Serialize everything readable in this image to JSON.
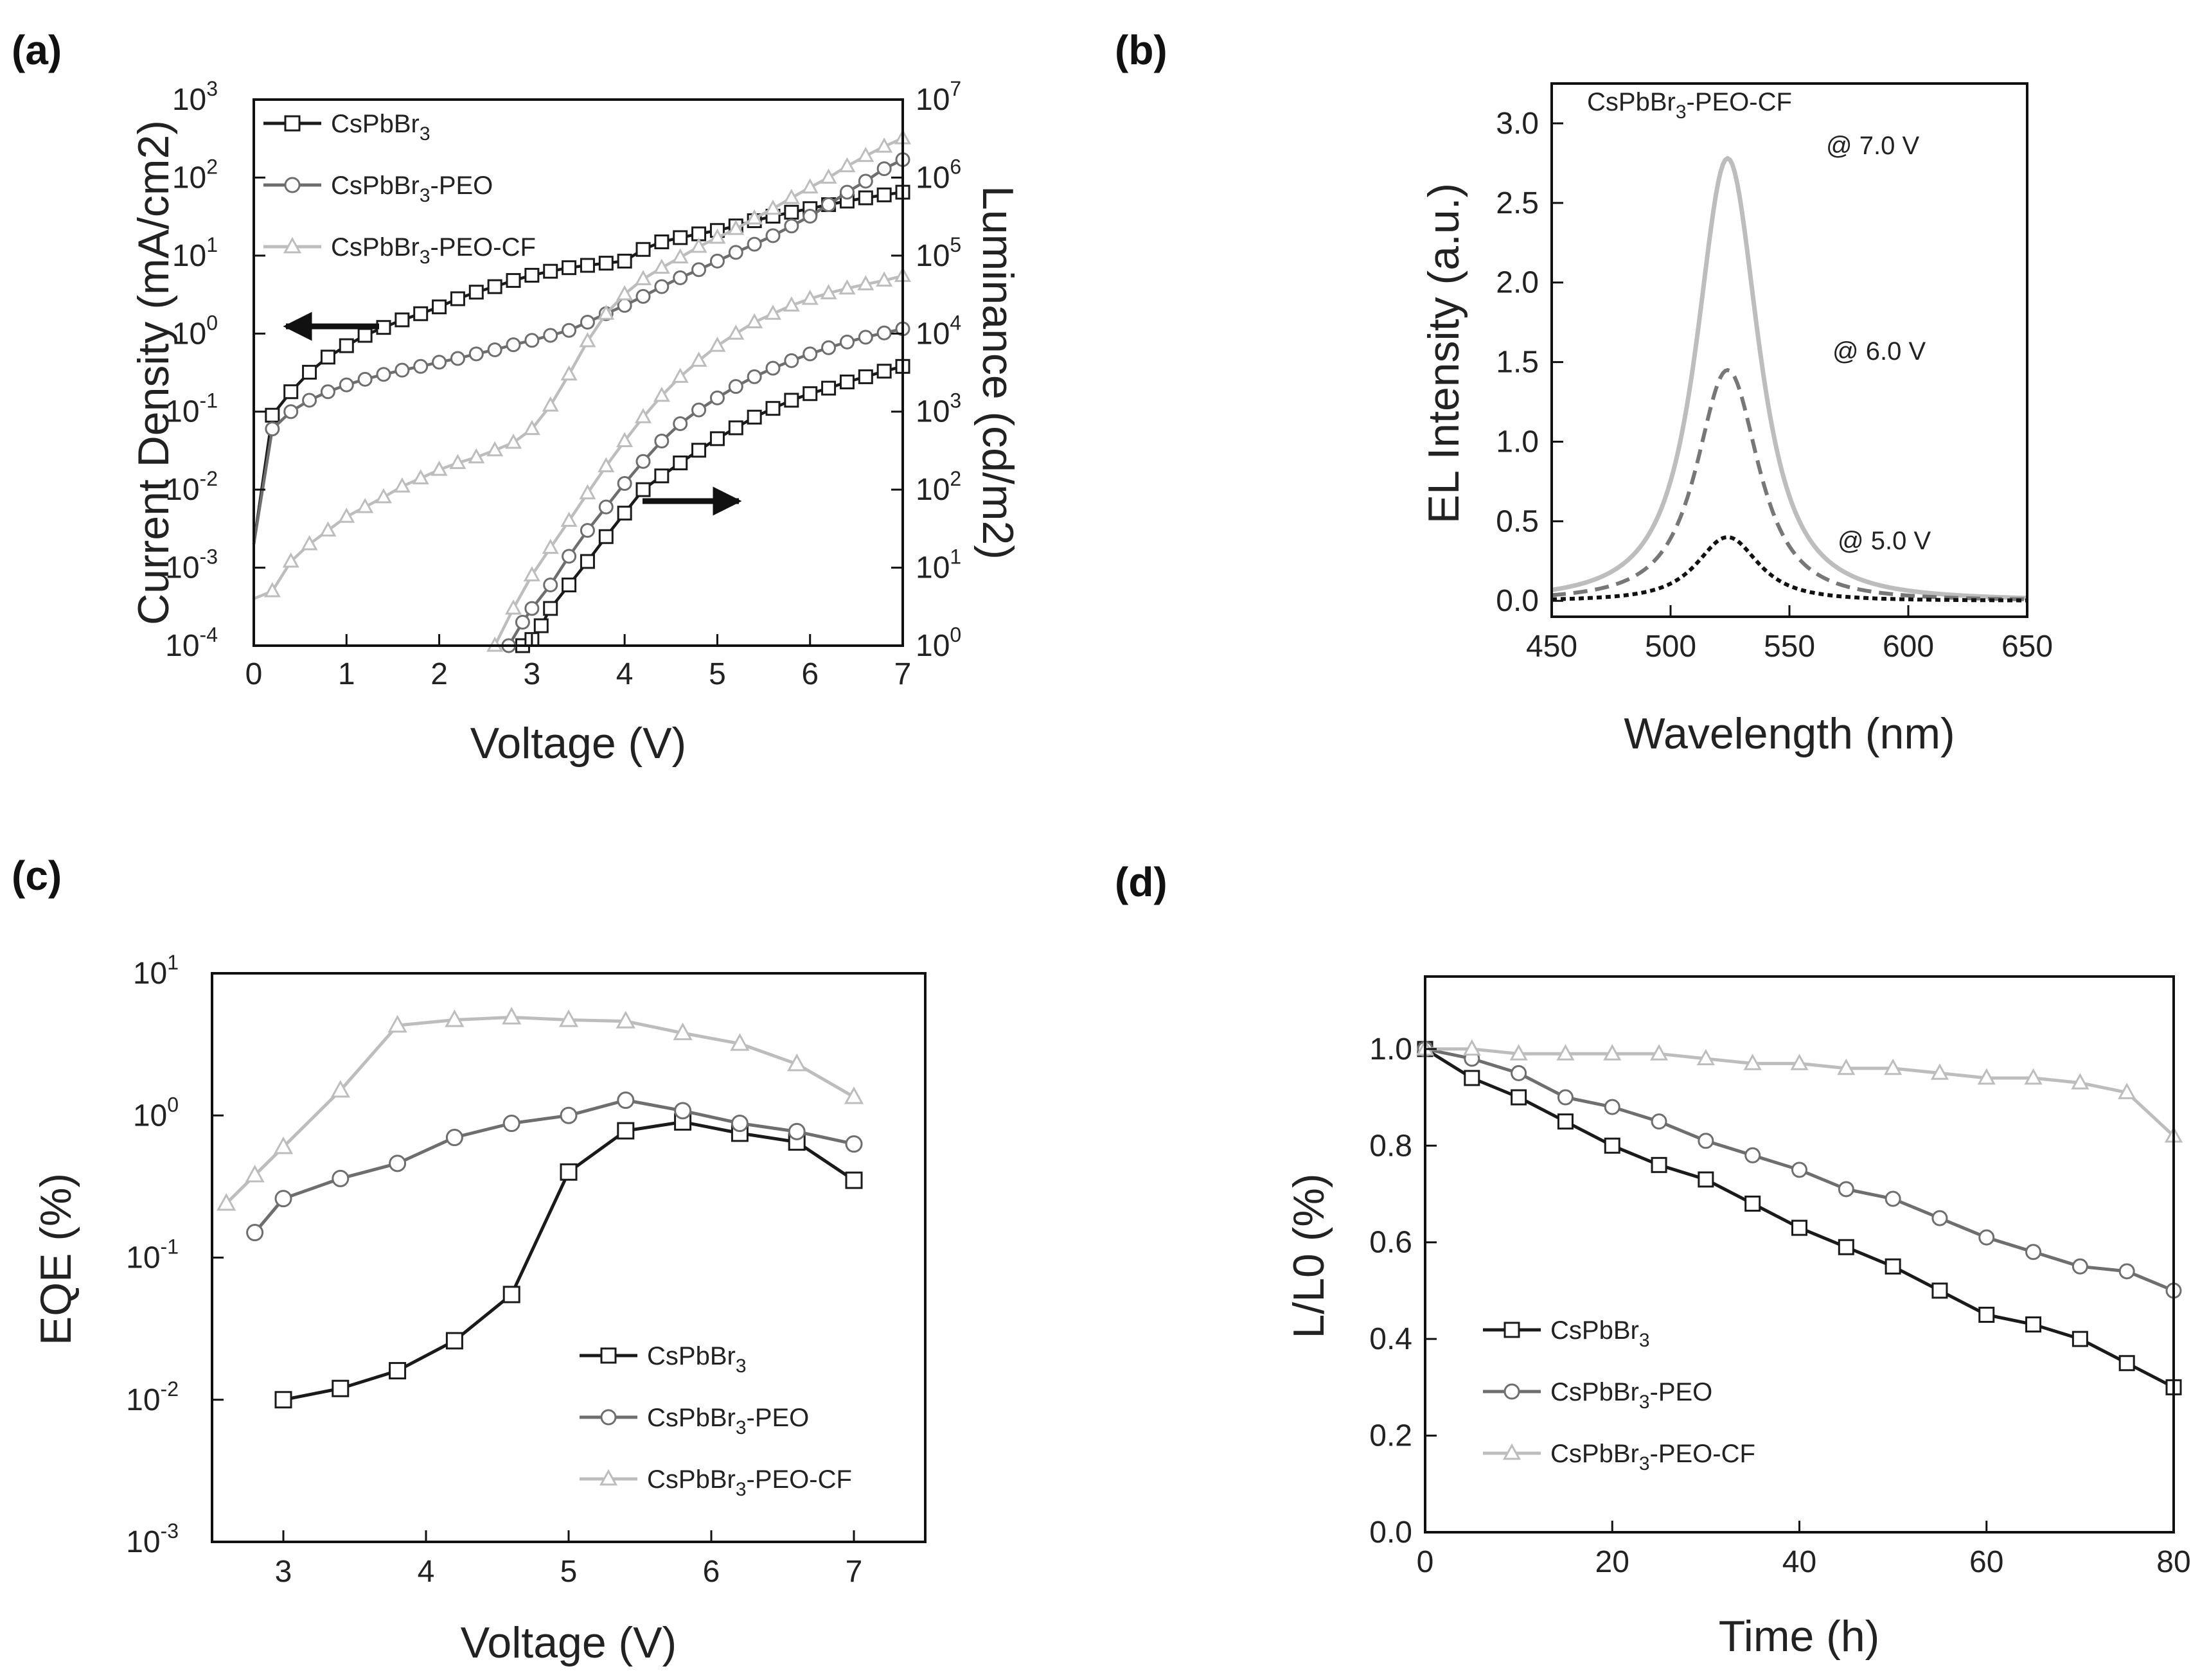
{
  "colors": {
    "CsPbBr3": "#1a1a1a",
    "CsPbBr3-PEO": "#6e6e6e",
    "CsPbBr3-PEO-CF": "#bdbdbd"
  },
  "legend": {
    "series1": "CsPbBr3",
    "series2": "CsPbBr3-PEO",
    "series3": "CsPbBr3-PEO-CF"
  },
  "chart_data": [
    {
      "id": "a",
      "panel_label": "(a)",
      "type": "line",
      "xlabel": "Voltage (V)",
      "ylabel_left": "Current Density (mA/cm2)",
      "ylabel_right": "Luminance (cd/m2)",
      "xlim": [
        0,
        7
      ],
      "ylim_left": [
        0.0001,
        1000
      ],
      "ylim_right": [
        1,
        10000000
      ],
      "xticks": [
        "0",
        "1",
        "2",
        "3",
        "4",
        "5",
        "6",
        "7"
      ],
      "yticks_left": [
        "10",
        "10",
        "10",
        "10",
        "10",
        "10",
        "10",
        "10"
      ],
      "yticks_left_exp": [
        "-4",
        "-3",
        "-2",
        "-1",
        "0",
        "1",
        "2",
        "3"
      ],
      "yticks_right": [
        "10",
        "10",
        "10",
        "10",
        "10",
        "10",
        "10",
        "10"
      ],
      "yticks_right_exp": [
        "0",
        "1",
        "2",
        "3",
        "4",
        "5",
        "6",
        "7"
      ],
      "legend_position": "top-left",
      "current_density": [
        {
          "name": "CsPbBr3",
          "x": [
            0,
            0.2,
            0.4,
            0.6,
            0.8,
            1.0,
            1.2,
            1.4,
            1.6,
            1.8,
            2.0,
            2.2,
            2.4,
            2.6,
            2.8,
            3.0,
            3.2,
            3.4,
            3.6,
            3.8,
            4.0,
            4.2,
            4.4,
            4.6,
            4.8,
            5.0,
            5.2,
            5.4,
            5.6,
            5.8,
            6.0,
            6.2,
            6.4,
            6.6,
            6.8,
            7.0
          ],
          "y": [
            0.002,
            0.09,
            0.18,
            0.32,
            0.5,
            0.7,
            0.95,
            1.2,
            1.5,
            1.8,
            2.2,
            2.8,
            3.4,
            4.0,
            4.8,
            5.6,
            6.3,
            7.0,
            7.5,
            8.0,
            8.5,
            12,
            15,
            17,
            19,
            21,
            24,
            28,
            32,
            36,
            40,
            45,
            50,
            55,
            60,
            65
          ]
        },
        {
          "name": "CsPbBr3-PEO",
          "x": [
            0,
            0.2,
            0.4,
            0.6,
            0.8,
            1.0,
            1.2,
            1.4,
            1.6,
            1.8,
            2.0,
            2.2,
            2.4,
            2.6,
            2.8,
            3.0,
            3.2,
            3.4,
            3.6,
            3.8,
            4.0,
            4.2,
            4.4,
            4.6,
            4.8,
            5.0,
            5.2,
            5.4,
            5.6,
            5.8,
            6.0,
            6.2,
            6.4,
            6.6,
            6.8,
            7.0
          ],
          "y": [
            0.002,
            0.06,
            0.1,
            0.14,
            0.18,
            0.22,
            0.26,
            0.3,
            0.34,
            0.38,
            0.43,
            0.48,
            0.55,
            0.62,
            0.72,
            0.82,
            0.95,
            1.1,
            1.4,
            1.8,
            2.3,
            3.0,
            4.0,
            5.2,
            6.6,
            8.5,
            11,
            14,
            18,
            24,
            32,
            45,
            65,
            90,
            130,
            170
          ]
        },
        {
          "name": "CsPbBr3-PEO-CF",
          "x": [
            0,
            0.2,
            0.4,
            0.6,
            0.8,
            1.0,
            1.2,
            1.4,
            1.6,
            1.8,
            2.0,
            2.2,
            2.4,
            2.6,
            2.8,
            3.0,
            3.2,
            3.4,
            3.6,
            3.8,
            4.0,
            4.2,
            4.4,
            4.6,
            4.8,
            5.0,
            5.2,
            5.4,
            5.6,
            5.8,
            6.0,
            6.2,
            6.4,
            6.6,
            6.8,
            7.0
          ],
          "y": [
            0.0004,
            0.0005,
            0.0012,
            0.002,
            0.003,
            0.0045,
            0.006,
            0.008,
            0.011,
            0.014,
            0.018,
            0.022,
            0.026,
            0.032,
            0.04,
            0.06,
            0.12,
            0.3,
            0.8,
            1.8,
            3.2,
            5.0,
            7.0,
            9.5,
            13,
            17,
            22,
            30,
            40,
            55,
            75,
            100,
            140,
            190,
            250,
            320
          ]
        }
      ],
      "luminance": [
        {
          "name": "CsPbBr3",
          "x": [
            2.9,
            3.0,
            3.1,
            3.2,
            3.4,
            3.6,
            3.8,
            4.0,
            4.2,
            4.4,
            4.6,
            4.8,
            5.0,
            5.2,
            5.4,
            5.6,
            5.8,
            6.0,
            6.2,
            6.4,
            6.6,
            6.8,
            7.0
          ],
          "y": [
            1,
            1.2,
            1.8,
            3,
            6,
            12,
            25,
            50,
            100,
            150,
            220,
            320,
            450,
            620,
            850,
            1100,
            1400,
            1700,
            2000,
            2400,
            2800,
            3300,
            3800
          ]
        },
        {
          "name": "CsPbBr3-PEO",
          "x": [
            2.75,
            2.9,
            3.0,
            3.2,
            3.4,
            3.6,
            3.8,
            4.0,
            4.2,
            4.4,
            4.6,
            4.8,
            5.0,
            5.2,
            5.4,
            5.6,
            5.8,
            6.0,
            6.2,
            6.4,
            6.6,
            6.8,
            7.0
          ],
          "y": [
            1,
            2,
            3,
            6,
            14,
            30,
            60,
            120,
            230,
            420,
            700,
            1050,
            1500,
            2100,
            2800,
            3600,
            4500,
            5500,
            6600,
            7800,
            9000,
            10200,
            11500
          ]
        },
        {
          "name": "CsPbBr3-PEO-CF",
          "x": [
            2.6,
            2.8,
            3.0,
            3.2,
            3.4,
            3.6,
            3.8,
            4.0,
            4.2,
            4.4,
            4.6,
            4.8,
            5.0,
            5.2,
            5.4,
            5.6,
            5.8,
            6.0,
            6.2,
            6.4,
            6.6,
            6.8,
            7.0
          ],
          "y": [
            1,
            3,
            8,
            18,
            40,
            90,
            200,
            420,
            850,
            1600,
            2800,
            4500,
            7000,
            10000,
            14000,
            18000,
            23000,
            28000,
            33000,
            38000,
            43000,
            48000,
            55000
          ]
        }
      ]
    },
    {
      "id": "b",
      "panel_label": "(b)",
      "type": "line",
      "xlabel": "Wavelength (nm)",
      "ylabel": "EL Intensity (a.u.)",
      "xlim": [
        450,
        650
      ],
      "ylim": [
        -0.1,
        3.25
      ],
      "xticks": [
        "450",
        "500",
        "550",
        "600",
        "650"
      ],
      "yticks": [
        "0.0",
        "0.5",
        "1.0",
        "1.5",
        "2.0",
        "2.5",
        "3.0"
      ],
      "sample_label_main": "CsPbBr",
      "sample_label_sub": "3",
      "sample_label_rest": "-PEO-CF",
      "peak_nm": 524,
      "series": [
        {
          "name": "@ 7.0 V",
          "peak": 2.78,
          "width_nm": 17,
          "style": "solid",
          "color": "#bdbdbd"
        },
        {
          "name": "@ 6.0 V",
          "peak": 1.45,
          "width_nm": 17,
          "style": "dashed",
          "color": "#777777"
        },
        {
          "name": "@ 5.0 V",
          "peak": 0.4,
          "width_nm": 17,
          "style": "dotted",
          "color": "#111111"
        }
      ]
    },
    {
      "id": "c",
      "panel_label": "(c)",
      "type": "line",
      "xlabel": "Voltage (V)",
      "ylabel": "EQE (%)",
      "xlim": [
        2.5,
        7.5
      ],
      "ylim": [
        0.001,
        10
      ],
      "xticks": [
        "3",
        "4",
        "5",
        "6",
        "7"
      ],
      "yticks": [
        "10",
        "10",
        "10",
        "10",
        "10"
      ],
      "yticks_exp": [
        "-3",
        "-2",
        "-1",
        "0",
        "1"
      ],
      "legend_position": "bottom-right",
      "series": [
        {
          "name": "CsPbBr3",
          "x": [
            3.0,
            3.4,
            3.8,
            4.2,
            4.6,
            5.0,
            5.4,
            5.8,
            6.2,
            6.6,
            7.0
          ],
          "y": [
            0.01,
            0.012,
            0.016,
            0.026,
            0.055,
            0.4,
            0.78,
            0.9,
            0.75,
            0.65,
            0.35
          ]
        },
        {
          "name": "CsPbBr3-PEO",
          "x": [
            2.8,
            3.0,
            3.4,
            3.8,
            4.2,
            4.6,
            5.0,
            5.4,
            5.8,
            6.2,
            6.6,
            7.0
          ],
          "y": [
            0.15,
            0.26,
            0.36,
            0.46,
            0.7,
            0.88,
            1.0,
            1.28,
            1.08,
            0.88,
            0.77,
            0.63
          ]
        },
        {
          "name": "CsPbBr3-PEO-CF",
          "x": [
            2.6,
            2.8,
            3.0,
            3.4,
            3.8,
            4.2,
            4.6,
            5.0,
            5.4,
            5.8,
            6.2,
            6.6,
            7.0
          ],
          "y": [
            0.24,
            0.38,
            0.6,
            1.5,
            4.3,
            4.7,
            4.9,
            4.7,
            4.6,
            3.8,
            3.2,
            2.3,
            1.35
          ]
        }
      ]
    },
    {
      "id": "d",
      "panel_label": "(d)",
      "type": "line",
      "xlabel": "Time (h)",
      "ylabel": "L/L0 (%)",
      "xlim": [
        0,
        80
      ],
      "ylim": [
        0,
        1.15
      ],
      "xticks": [
        "0",
        "20",
        "40",
        "60",
        "80"
      ],
      "yticks": [
        "0.0",
        "0.2",
        "0.4",
        "0.6",
        "0.8",
        "1.0"
      ],
      "legend_position": "bottom-left",
      "series": [
        {
          "name": "CsPbBr3",
          "x": [
            0,
            5,
            10,
            15,
            20,
            25,
            30,
            35,
            40,
            45,
            50,
            55,
            60,
            65,
            70,
            75,
            80
          ],
          "y": [
            1.0,
            0.94,
            0.9,
            0.85,
            0.8,
            0.76,
            0.73,
            0.68,
            0.63,
            0.59,
            0.55,
            0.5,
            0.45,
            0.43,
            0.4,
            0.35,
            0.3
          ]
        },
        {
          "name": "CsPbBr3-PEO",
          "x": [
            0,
            5,
            10,
            15,
            20,
            25,
            30,
            35,
            40,
            45,
            50,
            55,
            60,
            65,
            70,
            75,
            80
          ],
          "y": [
            1.0,
            0.98,
            0.95,
            0.9,
            0.88,
            0.85,
            0.81,
            0.78,
            0.75,
            0.71,
            0.69,
            0.65,
            0.61,
            0.58,
            0.55,
            0.54,
            0.5
          ]
        },
        {
          "name": "CsPbBr3-PEO-CF",
          "x": [
            0,
            5,
            10,
            15,
            20,
            25,
            30,
            35,
            40,
            45,
            50,
            55,
            60,
            65,
            70,
            75,
            80
          ],
          "y": [
            1.0,
            1.0,
            0.99,
            0.99,
            0.99,
            0.99,
            0.98,
            0.97,
            0.97,
            0.96,
            0.96,
            0.95,
            0.94,
            0.94,
            0.93,
            0.91,
            0.82
          ]
        }
      ]
    }
  ]
}
